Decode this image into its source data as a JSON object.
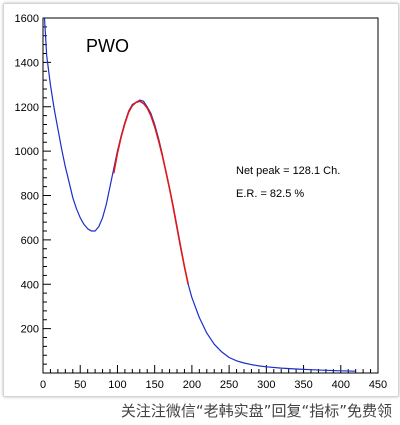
{
  "chart_data": {
    "type": "line",
    "title": "PWO",
    "xlabel": "",
    "ylabel": "",
    "xlim": [
      0,
      450
    ],
    "ylim": [
      0,
      1600
    ],
    "x_ticks": [
      0,
      50,
      100,
      150,
      200,
      250,
      300,
      350,
      400,
      450
    ],
    "y_ticks": [
      200,
      400,
      600,
      800,
      1000,
      1200,
      1400,
      1600
    ],
    "grid": false,
    "annotations": [
      "Net peak =  128.1 Ch.",
      "E.R. = 82.5 %"
    ],
    "series": [
      {
        "color": "#1a2ecc",
        "x": [
          2,
          5,
          10,
          15,
          20,
          25,
          30,
          35,
          40,
          45,
          50,
          55,
          60,
          65,
          70,
          75,
          80,
          85,
          90,
          95,
          100,
          105,
          110,
          115,
          120,
          125,
          130,
          135,
          140,
          145,
          150,
          155,
          160,
          165,
          170,
          175,
          180,
          185,
          190,
          195,
          200,
          210,
          220,
          230,
          240,
          250,
          260,
          270,
          280,
          290,
          300,
          320,
          340,
          360,
          380,
          400,
          420
        ],
        "values": [
          1600,
          1430,
          1300,
          1190,
          1100,
          1010,
          930,
          860,
          790,
          740,
          700,
          670,
          650,
          640,
          640,
          660,
          700,
          760,
          840,
          920,
          1000,
          1070,
          1130,
          1180,
          1210,
          1220,
          1230,
          1225,
          1200,
          1170,
          1120,
          1060,
          990,
          910,
          830,
          750,
          660,
          570,
          480,
          400,
          340,
          250,
          180,
          130,
          95,
          70,
          55,
          45,
          38,
          32,
          28,
          22,
          18,
          15,
          12,
          10,
          8
        ]
      },
      {
        "color": "#e01818",
        "x": [
          95,
          100,
          105,
          110,
          115,
          120,
          125,
          130,
          135,
          140,
          145,
          150,
          155,
          160,
          165,
          170,
          175,
          180,
          185,
          190,
          195
        ],
        "values": [
          900,
          990,
          1065,
          1125,
          1175,
          1205,
          1220,
          1225,
          1215,
          1195,
          1160,
          1110,
          1050,
          985,
          910,
          830,
          745,
          655,
          565,
          480,
          400
        ]
      }
    ]
  },
  "watermark": "关注注微信“老韩实盘”回复“指标”免费领"
}
